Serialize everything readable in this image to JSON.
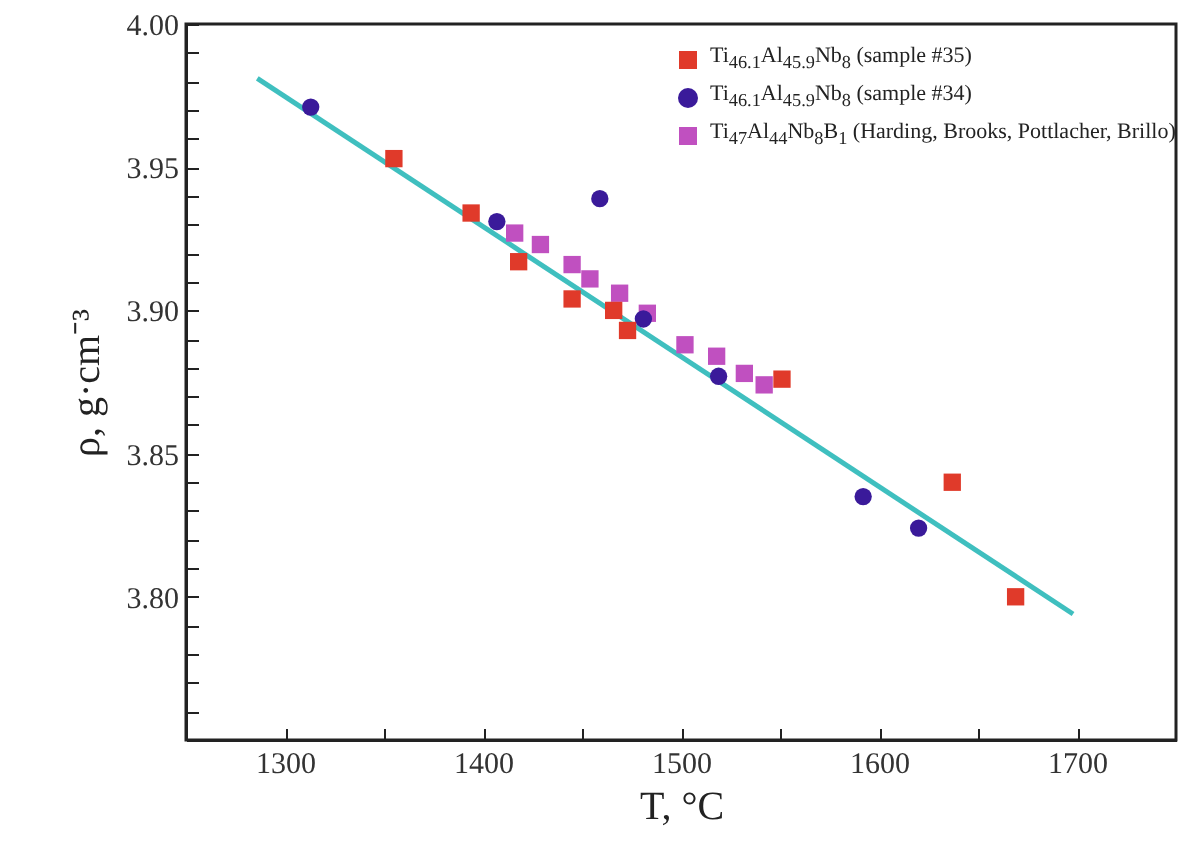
{
  "chart_data": {
    "type": "scatter",
    "xlabel": "T, °C",
    "ylabel": "ρ, g·cm⁻³",
    "xlim": [
      1250,
      1750
    ],
    "ylim": [
      3.75,
      4.0
    ],
    "xticks": [
      1300,
      {
        "value": 1350,
        "label": null
      },
      1400,
      {
        "value": 1450,
        "label": null
      },
      1500,
      {
        "value": 1550,
        "label": null
      },
      1600,
      {
        "value": 1650,
        "label": null
      },
      1700
    ],
    "yticks": [
      {
        "value": 3.76,
        "label": null
      },
      {
        "value": 3.77,
        "label": null
      },
      {
        "value": 3.78,
        "label": null
      },
      {
        "value": 3.79,
        "label": null
      },
      {
        "value": 3.8,
        "label": "3.80"
      },
      {
        "value": 3.81,
        "label": null
      },
      {
        "value": 3.82,
        "label": null
      },
      {
        "value": 3.83,
        "label": null
      },
      {
        "value": 3.84,
        "label": null
      },
      {
        "value": 3.85,
        "label": "3.85"
      },
      {
        "value": 3.86,
        "label": null
      },
      {
        "value": 3.87,
        "label": null
      },
      {
        "value": 3.88,
        "label": null
      },
      {
        "value": 3.89,
        "label": null
      },
      {
        "value": 3.9,
        "label": "3.90"
      },
      {
        "value": 3.91,
        "label": null
      },
      {
        "value": 3.92,
        "label": null
      },
      {
        "value": 3.93,
        "label": null
      },
      {
        "value": 3.94,
        "label": null
      },
      {
        "value": 3.95,
        "label": "3.95"
      },
      {
        "value": 3.96,
        "label": null
      },
      {
        "value": 3.97,
        "label": null
      },
      {
        "value": 3.98,
        "label": null
      },
      {
        "value": 3.99,
        "label": null
      },
      {
        "value": 4.0,
        "label": "4.00"
      }
    ],
    "grid": false,
    "legend": "top right",
    "series": [
      {
        "name": "Ti$_{46.1}$Al$_{45.9}$Nb$_{8}$ (sample #35)",
        "color": "#e03a2a",
        "marker": "square",
        "x": [
          1355,
          1394,
          1418,
          1445,
          1466,
          1473,
          1551,
          1637,
          1669
        ],
        "values": [
          3.953,
          3.934,
          3.917,
          3.904,
          3.9,
          3.893,
          3.876,
          3.84,
          3.8
        ]
      },
      {
        "name": "Ti$_{46.1}$Al$_{45.9}$Nb$_{8}$ (sample #34)",
        "color": "#3a1a9a",
        "marker": "circle",
        "x": [
          1313,
          1407,
          1459,
          1481,
          1519,
          1592,
          1620
        ],
        "values": [
          3.971,
          3.931,
          3.939,
          3.897,
          3.877,
          3.835,
          3.824
        ]
      },
      {
        "name": "Ti$_{47}$Al$_{44}$Nb$_{8}$B$_{1}$ (Harding, Brooks, Pottlacher, Brillo)",
        "color": "#c050c0",
        "marker": "square",
        "x": [
          1416,
          1429,
          1445,
          1454,
          1469,
          1483,
          1502,
          1518,
          1532,
          1542
        ],
        "values": [
          3.927,
          3.923,
          3.916,
          3.911,
          3.906,
          3.899,
          3.888,
          3.884,
          3.878,
          3.874
        ]
      },
      {
        "type": "line",
        "color": "#3fbfbf",
        "x": [
          1286,
          1698
        ],
        "values": [
          3.981,
          3.794
        ]
      }
    ]
  }
}
